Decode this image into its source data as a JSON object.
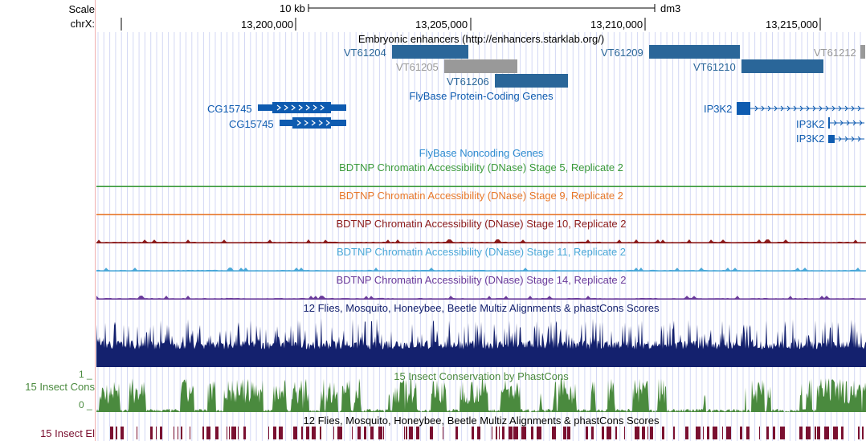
{
  "sidebar": {
    "scale_label": "Scale",
    "chrom_label": "chrX:",
    "insect_cons_label": "15 Insect Cons",
    "insect_cons_top": "1 _",
    "insect_cons_bottom": "0 _",
    "insect_el_label": "15 Insect El"
  },
  "ruler": {
    "scale_value": "10 kb",
    "assembly": "dm3",
    "ticks": [
      "13,200,000",
      "13,205,000",
      "13,210,000",
      "13,215,000"
    ]
  },
  "tracks": {
    "enhancers": {
      "title": "Embryonic enhancers (http://enhancers.starklab.org/)",
      "items": [
        {
          "name": "VT61204",
          "color": "#2a6699"
        },
        {
          "name": "VT61205",
          "color": "#999999"
        },
        {
          "name": "VT61206",
          "color": "#2a6699"
        },
        {
          "name": "VT61209",
          "color": "#2a6699"
        },
        {
          "name": "VT61210",
          "color": "#2a6699"
        },
        {
          "name": "VT61212",
          "color": "#999999"
        }
      ]
    },
    "protein_genes": {
      "title": "FlyBase Protein-Coding Genes",
      "color": "#0e5bb0",
      "items": [
        {
          "name": "CG15745"
        },
        {
          "name": "CG15745"
        },
        {
          "name": "IP3K2"
        },
        {
          "name": "IP3K2"
        },
        {
          "name": "IP3K2"
        }
      ]
    },
    "noncoding": {
      "title": "FlyBase Noncoding Genes",
      "color": "#2e8bd0"
    },
    "dnase": [
      {
        "title": "BDTNP Chromatin Accessibility (DNase) Stage 5, Replicate 2",
        "color": "#3a9a3a"
      },
      {
        "title": "BDTNP Chromatin Accessibility (DNase) Stage 9, Replicate 2",
        "color": "#e8782a"
      },
      {
        "title": "BDTNP Chromatin Accessibility (DNase) Stage 10, Replicate 2",
        "color": "#8b1a1a"
      },
      {
        "title": "BDTNP Chromatin Accessibility (DNase) Stage 11, Replicate 2",
        "color": "#4aa8d8"
      },
      {
        "title": "BDTNP Chromatin Accessibility (DNase) Stage 14, Replicate 2",
        "color": "#6a3a9a"
      }
    ],
    "multiz": {
      "title": "12 Flies, Mosquito, Honeybee, Beetle Multiz Alignments & phastCons Scores",
      "color": "#14216e"
    },
    "phastcons": {
      "title": "15 Insect Conservation by PhastCons",
      "color": "#4a8a3e"
    },
    "elements": {
      "title": "12 Flies, Mosquito, Honeybee, Beetle Multiz Alignments & phastCons Scores",
      "color": "#7a1030"
    }
  }
}
